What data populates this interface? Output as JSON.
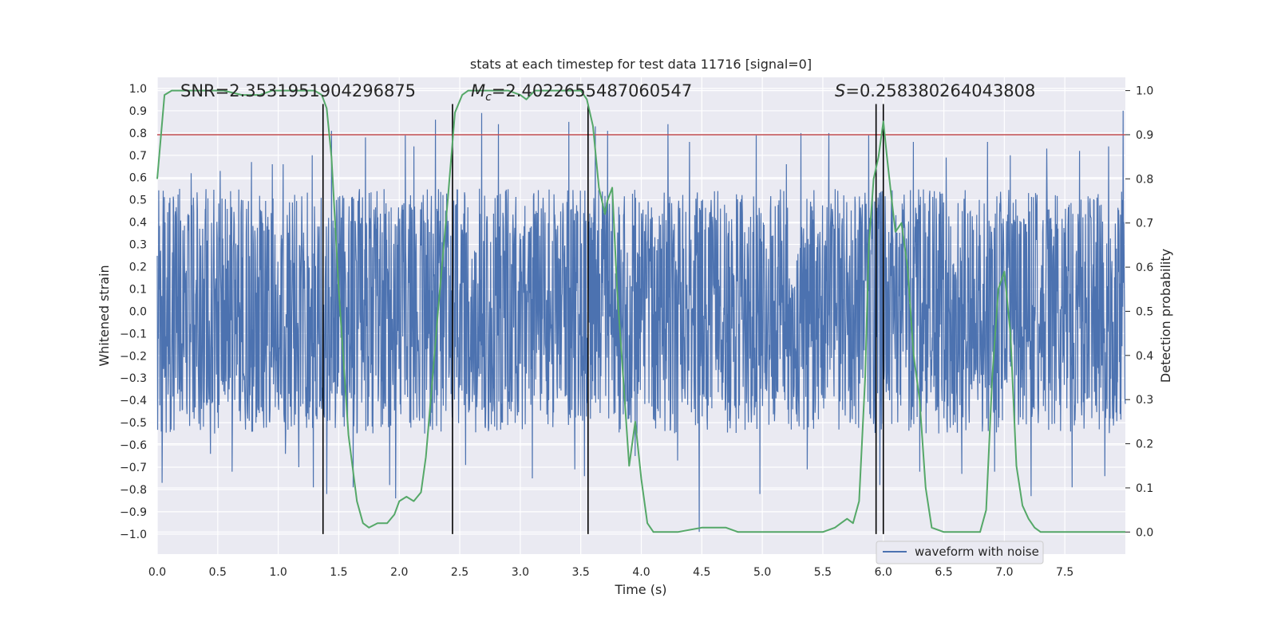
{
  "chart_data": {
    "type": "line",
    "title": "stats at each timestep for test data 11716 [signal=0]",
    "xlabel": "Time (s)",
    "ylabel": "Whitened strain",
    "y2label": "Detection probability",
    "xlim": [
      0.0,
      8.0
    ],
    "ylim": [
      -1.09,
      1.05
    ],
    "y2lim": [
      -0.05,
      1.03
    ],
    "xticks": [
      "0.0",
      "0.5",
      "1.0",
      "1.5",
      "2.0",
      "2.5",
      "3.0",
      "3.5",
      "4.0",
      "4.5",
      "5.0",
      "5.5",
      "6.0",
      "6.5",
      "7.0",
      "7.5"
    ],
    "xtick_values": [
      0.0,
      0.5,
      1.0,
      1.5,
      2.0,
      2.5,
      3.0,
      3.5,
      4.0,
      4.5,
      5.0,
      5.5,
      6.0,
      6.5,
      7.0,
      7.5
    ],
    "yticks": [
      "1.0",
      "0.9",
      "0.8",
      "0.7",
      "0.6",
      "0.5",
      "0.4",
      "0.3",
      "0.2",
      "0.1",
      "0.0",
      "−0.1",
      "−0.2",
      "−0.3",
      "−0.4",
      "−0.5",
      "−0.6",
      "−0.7",
      "−0.8",
      "−0.9",
      "−1.0"
    ],
    "ytick_values": [
      1.0,
      0.9,
      0.8,
      0.7,
      0.6,
      0.5,
      0.4,
      0.3,
      0.2,
      0.1,
      0.0,
      -0.1,
      -0.2,
      -0.3,
      -0.4,
      -0.5,
      -0.6,
      -0.7,
      -0.8,
      -0.9,
      -1.0
    ],
    "y2ticks": [
      "1.0",
      "0.9",
      "0.8",
      "0.7",
      "0.6",
      "0.5",
      "0.4",
      "0.3",
      "0.2",
      "0.1",
      "0.0"
    ],
    "y2tick_values": [
      1.0,
      0.9,
      0.8,
      0.7,
      0.6,
      0.5,
      0.4,
      0.3,
      0.2,
      0.1,
      0.0
    ],
    "annotations": {
      "snr": "SNR=2.3531951904296875",
      "mc": "=2.4022655487060547",
      "spin": "=0.258380264043808"
    },
    "threshold": {
      "value": 0.9,
      "axis": "y2",
      "color": "#c44e52"
    },
    "vertical_lines": [
      1.37,
      2.44,
      3.56,
      5.94,
      6.0
    ],
    "vertical_line_range": [
      -1.0,
      0.93
    ],
    "waveform": {
      "name": "waveform with noise",
      "color": "#4c72b0",
      "core_amplitude": 0.35,
      "typical_peak": 0.55,
      "max_positive": 0.93,
      "min_negative": -0.99,
      "peaks": [
        {
          "t": 0.28,
          "y": 0.62
        },
        {
          "t": 0.52,
          "y": 0.63
        },
        {
          "t": 0.78,
          "y": 0.67
        },
        {
          "t": 0.95,
          "y": 0.66
        },
        {
          "t": 1.04,
          "y": 0.66
        },
        {
          "t": 1.28,
          "y": 0.7
        },
        {
          "t": 1.44,
          "y": 0.81
        },
        {
          "t": 1.72,
          "y": 0.78
        },
        {
          "t": 2.05,
          "y": 0.79
        },
        {
          "t": 2.12,
          "y": 0.74
        },
        {
          "t": 2.3,
          "y": 0.86
        },
        {
          "t": 2.55,
          "y": 0.84
        },
        {
          "t": 2.68,
          "y": 0.89
        },
        {
          "t": 2.82,
          "y": 0.84
        },
        {
          "t": 3.4,
          "y": 0.85
        },
        {
          "t": 3.62,
          "y": 0.83
        },
        {
          "t": 3.72,
          "y": 0.81
        },
        {
          "t": 4.22,
          "y": 0.84
        },
        {
          "t": 4.4,
          "y": 0.76
        },
        {
          "t": 4.48,
          "y": 0.89
        },
        {
          "t": 4.95,
          "y": 0.79
        },
        {
          "t": 5.2,
          "y": 0.66
        },
        {
          "t": 5.32,
          "y": 0.8
        },
        {
          "t": 5.55,
          "y": 0.8
        },
        {
          "t": 5.88,
          "y": 0.79
        },
        {
          "t": 6.25,
          "y": 0.76
        },
        {
          "t": 6.52,
          "y": 0.69
        },
        {
          "t": 6.86,
          "y": 0.76
        },
        {
          "t": 7.05,
          "y": 0.7
        },
        {
          "t": 7.35,
          "y": 0.73
        },
        {
          "t": 7.62,
          "y": 0.72
        },
        {
          "t": 7.86,
          "y": 0.74
        },
        {
          "t": 7.98,
          "y": 0.9
        },
        {
          "t": 0.04,
          "y": -0.77
        },
        {
          "t": 0.44,
          "y": -0.64
        },
        {
          "t": 0.62,
          "y": -0.72
        },
        {
          "t": 1.06,
          "y": -0.64
        },
        {
          "t": 1.17,
          "y": -0.7
        },
        {
          "t": 1.29,
          "y": -0.79
        },
        {
          "t": 1.4,
          "y": -0.82
        },
        {
          "t": 1.62,
          "y": -0.79
        },
        {
          "t": 1.92,
          "y": -0.78
        },
        {
          "t": 1.97,
          "y": -0.84
        },
        {
          "t": 2.55,
          "y": -0.69
        },
        {
          "t": 3.1,
          "y": -0.75
        },
        {
          "t": 3.45,
          "y": -0.71
        },
        {
          "t": 3.53,
          "y": -0.74
        },
        {
          "t": 3.95,
          "y": -0.65
        },
        {
          "t": 4.3,
          "y": -0.67
        },
        {
          "t": 4.48,
          "y": -0.99
        },
        {
          "t": 4.98,
          "y": -0.82
        },
        {
          "t": 5.37,
          "y": -0.71
        },
        {
          "t": 5.97,
          "y": -0.78
        },
        {
          "t": 6.3,
          "y": -0.72
        },
        {
          "t": 6.65,
          "y": -0.73
        },
        {
          "t": 6.92,
          "y": -0.72
        },
        {
          "t": 7.22,
          "y": -0.83
        },
        {
          "t": 7.56,
          "y": -0.79
        },
        {
          "t": 7.83,
          "y": -0.74
        }
      ]
    },
    "detection_probability": {
      "color": "#55a868",
      "t": [
        0.0,
        0.06,
        0.12,
        0.25,
        0.4,
        0.55,
        0.7,
        0.85,
        0.95,
        1.0,
        1.1,
        1.2,
        1.3,
        1.36,
        1.4,
        1.44,
        1.47,
        1.5,
        1.58,
        1.65,
        1.7,
        1.75,
        1.82,
        1.9,
        1.96,
        2.0,
        2.06,
        2.12,
        2.18,
        2.22,
        2.26,
        2.32,
        2.4,
        2.46,
        2.52,
        2.57,
        2.62,
        2.7,
        2.8,
        2.9,
        3.0,
        3.05,
        3.12,
        3.2,
        3.3,
        3.4,
        3.5,
        3.55,
        3.6,
        3.65,
        3.7,
        3.72,
        3.76,
        3.8,
        3.85,
        3.9,
        3.95,
        4.0,
        4.05,
        4.1,
        4.15,
        4.3,
        4.5,
        4.6,
        4.7,
        4.8,
        4.9,
        5.0,
        5.1,
        5.2,
        5.3,
        5.4,
        5.5,
        5.6,
        5.65,
        5.7,
        5.75,
        5.8,
        5.85,
        5.88,
        5.92,
        5.96,
        6.0,
        6.03,
        6.07,
        6.1,
        6.15,
        6.2,
        6.25,
        6.3,
        6.35,
        6.4,
        6.5,
        6.6,
        6.7,
        6.8,
        6.85,
        6.9,
        6.95,
        7.0,
        7.05,
        7.1,
        7.15,
        7.2,
        7.25,
        7.3,
        7.4,
        7.6,
        7.8,
        8.0
      ],
      "p": [
        0.8,
        0.99,
        1.0,
        1.0,
        1.0,
        1.0,
        0.99,
        0.99,
        1.0,
        1.0,
        1.0,
        1.0,
        1.0,
        0.99,
        0.96,
        0.85,
        0.7,
        0.55,
        0.22,
        0.07,
        0.02,
        0.01,
        0.02,
        0.02,
        0.04,
        0.07,
        0.08,
        0.07,
        0.09,
        0.17,
        0.3,
        0.5,
        0.75,
        0.95,
        0.99,
        1.0,
        1.0,
        1.0,
        1.0,
        1.0,
        0.99,
        0.98,
        1.0,
        1.0,
        1.0,
        1.0,
        1.0,
        0.98,
        0.92,
        0.78,
        0.72,
        0.75,
        0.78,
        0.55,
        0.35,
        0.15,
        0.25,
        0.12,
        0.02,
        0.0,
        0.0,
        0.0,
        0.01,
        0.01,
        0.01,
        0.0,
        0.0,
        0.0,
        0.0,
        0.0,
        0.0,
        0.0,
        0.0,
        0.01,
        0.02,
        0.03,
        0.02,
        0.07,
        0.35,
        0.65,
        0.8,
        0.85,
        0.93,
        0.85,
        0.75,
        0.68,
        0.7,
        0.6,
        0.4,
        0.3,
        0.1,
        0.01,
        0.0,
        0.0,
        0.0,
        0.0,
        0.05,
        0.35,
        0.55,
        0.59,
        0.45,
        0.15,
        0.06,
        0.03,
        0.01,
        0.0,
        0.0,
        0.0,
        0.0,
        0.0
      ]
    },
    "legend": {
      "placement": "lower-center-right",
      "items": [
        "waveform with noise"
      ]
    },
    "grid": true
  }
}
